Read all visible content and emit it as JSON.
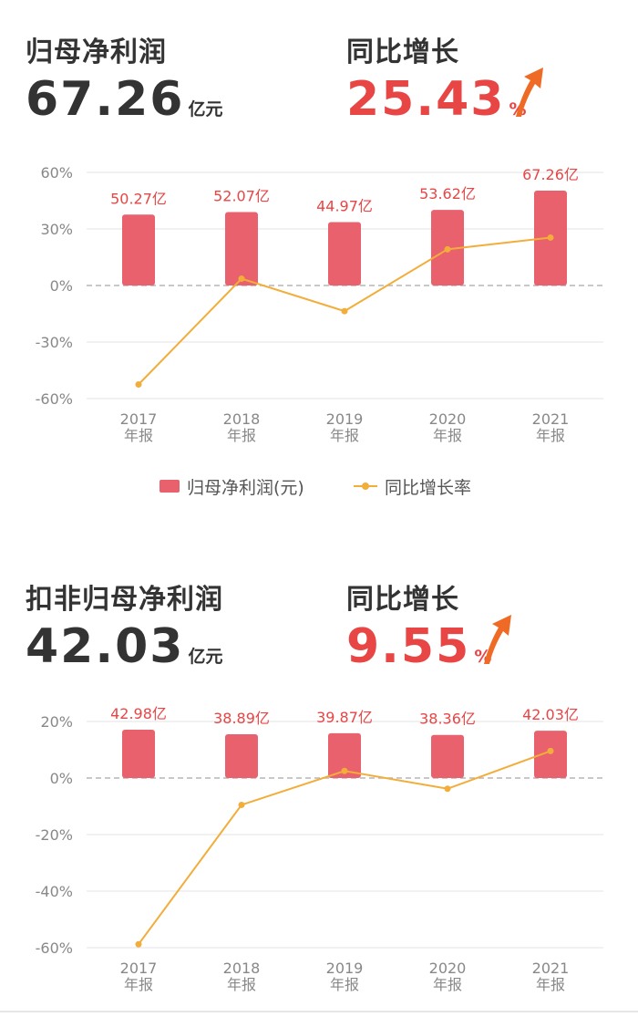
{
  "sections": [
    {
      "title": "归母净利润",
      "value": "67.26",
      "unit": "亿元",
      "growth_title": "同比增长",
      "growth_value": "25.43",
      "growth_unit": "%"
    },
    {
      "title": "扣非归母净利润",
      "value": "42.03",
      "unit": "亿元",
      "growth_title": "同比增长",
      "growth_value": "9.55",
      "growth_unit": "%"
    }
  ],
  "legend": {
    "bar": "归母净利润(元)",
    "line": "同比增长率"
  },
  "colors": {
    "bar": "#e9616d",
    "line": "#f2ad3a",
    "accent": "#e84545",
    "text": "#333333"
  },
  "chart_data": [
    {
      "type": "bar+line",
      "categories": [
        "2017\n年报",
        "2018\n年报",
        "2019\n年报",
        "2020\n年报",
        "2021\n年报"
      ],
      "series": [
        {
          "name": "归母净利润(元)",
          "type": "bar",
          "values": [
            50.27,
            52.07,
            44.97,
            53.62,
            67.26
          ],
          "labels": [
            "50.27亿",
            "52.07亿",
            "44.97亿",
            "53.62亿",
            "67.26亿"
          ]
        },
        {
          "name": "同比增长率",
          "type": "line",
          "values": [
            -52.5,
            3.6,
            -13.6,
            19.2,
            25.43
          ]
        }
      ],
      "yticks": [
        "60%",
        "30%",
        "0%",
        "-30%",
        "-60%"
      ],
      "ylim": [
        -60,
        60
      ],
      "grid": true,
      "legend_position": "bottom-center"
    },
    {
      "type": "bar+line",
      "categories": [
        "2017\n年报",
        "2018\n年报",
        "2019\n年报",
        "2020\n年报",
        "2021\n年报"
      ],
      "series": [
        {
          "name": "扣非归母净利润",
          "type": "bar",
          "values": [
            42.98,
            38.89,
            39.87,
            38.36,
            42.03
          ],
          "labels": [
            "42.98亿",
            "38.89亿",
            "39.87亿",
            "38.36亿",
            "42.03亿"
          ]
        },
        {
          "name": "同比增长率",
          "type": "line",
          "values": [
            -58.8,
            -9.5,
            2.5,
            -3.8,
            9.55
          ]
        }
      ],
      "yticks": [
        "20%",
        "0%",
        "-20%",
        "-40%",
        "-60%"
      ],
      "ylim": [
        -60,
        20
      ],
      "grid": true
    }
  ]
}
